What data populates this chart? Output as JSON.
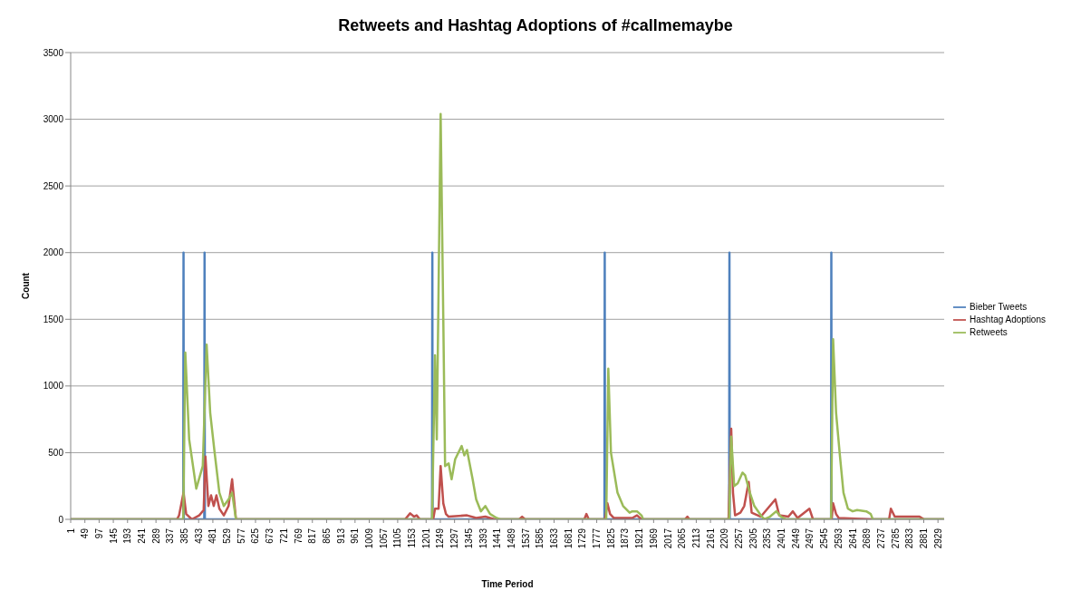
{
  "chart_data": {
    "type": "line",
    "title": "Retweets and Hashtag Adoptions of #callmemaybe",
    "xlabel": "Time Period",
    "ylabel": "Count",
    "xlim": [
      1,
      2950
    ],
    "xticks": [
      1,
      49,
      97,
      145,
      193,
      241,
      289,
      337,
      385,
      433,
      481,
      529,
      577,
      625,
      673,
      721,
      769,
      817,
      865,
      913,
      961,
      1009,
      1057,
      1105,
      1153,
      1201,
      1249,
      1297,
      1345,
      1393,
      1441,
      1489,
      1537,
      1585,
      1633,
      1681,
      1729,
      1777,
      1825,
      1873,
      1921,
      1969,
      2017,
      2065,
      2113,
      2161,
      2209,
      2257,
      2305,
      2353,
      2401,
      2449,
      2497,
      2545,
      2593,
      2641,
      2689,
      2737,
      2785,
      2833,
      2881,
      2929
    ],
    "ylim": [
      0,
      3500
    ],
    "yticks": [
      0,
      500,
      1000,
      1500,
      2000,
      2500,
      3000,
      3500
    ],
    "grid": "y",
    "legend": "right",
    "marker": "none",
    "line_style": "solid",
    "series": [
      {
        "name": "Bieber Tweets",
        "color": "#4f81bd",
        "x": [
          1,
          381,
          382,
          383,
          452,
          453,
          454,
          1221,
          1222,
          1223,
          1803,
          1804,
          1805,
          2224,
          2225,
          2226,
          2568,
          2569,
          2570,
          2950
        ],
        "values": [
          0,
          0,
          2000,
          0,
          0,
          2000,
          0,
          0,
          2000,
          0,
          0,
          2000,
          0,
          0,
          2000,
          0,
          0,
          2000,
          0,
          0
        ]
      },
      {
        "name": "Hashtag Adoptions",
        "color": "#c0504d",
        "x": [
          1,
          360,
          367,
          382,
          391,
          410,
          435,
          450,
          456,
          466,
          475,
          484,
          493,
          503,
          518,
          534,
          546,
          559,
          1130,
          1147,
          1160,
          1169,
          1180,
          1225,
          1231,
          1243,
          1250,
          1259,
          1268,
          1277,
          1339,
          1370,
          1401,
          1432,
          1515,
          1525,
          1535,
          1735,
          1742,
          1750,
          1805,
          1813,
          1822,
          1835,
          1897,
          1913,
          1928,
          2075,
          2083,
          2090,
          2222,
          2231,
          2237,
          2244,
          2262,
          2275,
          2290,
          2300,
          2331,
          2380,
          2393,
          2424,
          2439,
          2455,
          2495,
          2507,
          2570,
          2575,
          2585,
          2594,
          2702,
          2764,
          2770,
          2783,
          2867,
          2882,
          2950
        ],
        "values": [
          0,
          0,
          30,
          200,
          40,
          0,
          30,
          70,
          470,
          100,
          180,
          100,
          180,
          80,
          30,
          100,
          300,
          0,
          0,
          45,
          20,
          30,
          0,
          0,
          80,
          80,
          400,
          120,
          40,
          20,
          30,
          10,
          20,
          0,
          0,
          20,
          0,
          0,
          40,
          0,
          0,
          120,
          40,
          10,
          10,
          30,
          0,
          0,
          20,
          0,
          0,
          680,
          200,
          30,
          50,
          100,
          280,
          50,
          20,
          150,
          30,
          20,
          60,
          10,
          80,
          0,
          0,
          120,
          40,
          10,
          0,
          0,
          80,
          20,
          20,
          0,
          0
        ]
      },
      {
        "name": "Retweets",
        "color": "#9bbb59",
        "x": [
          1,
          381,
          388,
          401,
          425,
          447,
          460,
          472,
          487,
          503,
          518,
          534,
          546,
          559,
          1221,
          1231,
          1237,
          1250,
          1259,
          1265,
          1277,
          1287,
          1299,
          1321,
          1330,
          1339,
          1358,
          1370,
          1386,
          1401,
          1417,
          1439,
          1451,
          1809,
          1816,
          1825,
          1847,
          1866,
          1888,
          1897,
          1913,
          1928,
          1934,
          2224,
          2231,
          2241,
          2253,
          2269,
          2278,
          2294,
          2309,
          2331,
          2343,
          2362,
          2383,
          2399,
          2417,
          2568,
          2575,
          2585,
          2597,
          2610,
          2625,
          2641,
          2656,
          2687,
          2702,
          2709,
          2950
        ],
        "values": [
          0,
          0,
          1250,
          600,
          230,
          400,
          1310,
          800,
          500,
          200,
          100,
          150,
          200,
          0,
          0,
          1230,
          600,
          3040,
          1500,
          400,
          420,
          300,
          450,
          550,
          480,
          520,
          300,
          150,
          60,
          100,
          40,
          10,
          0,
          0,
          1130,
          500,
          200,
          100,
          50,
          60,
          60,
          30,
          0,
          0,
          620,
          250,
          270,
          350,
          330,
          200,
          100,
          30,
          0,
          20,
          60,
          20,
          0,
          0,
          1350,
          800,
          500,
          200,
          80,
          60,
          70,
          60,
          40,
          0,
          0
        ]
      }
    ]
  }
}
